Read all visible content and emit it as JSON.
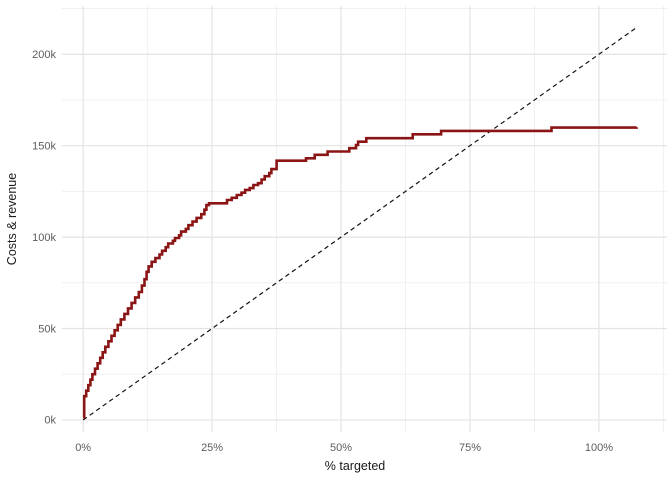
{
  "figure": {
    "x_axis": {
      "title": "% targeted",
      "tick_labels": [
        "0%",
        "25%",
        "50%",
        "75%",
        "100%"
      ],
      "tick_values": [
        0,
        25,
        50,
        75,
        100
      ],
      "minor_values": [
        12.5,
        37.5,
        62.5,
        87.5,
        112.5
      ]
    },
    "y_axis": {
      "title": "Costs & revenue",
      "tick_labels": [
        "0k",
        "50k",
        "100k",
        "150k",
        "200k"
      ],
      "tick_values": [
        0,
        50,
        100,
        150,
        200
      ],
      "minor_values": [
        25,
        75,
        125,
        175,
        225
      ]
    },
    "colors": {
      "curve": "#8B1414",
      "baseline": "#111111",
      "grid_major": "#E3E3E3",
      "grid_minor": "#F0F0F0",
      "tick_text": "#5C5C5C",
      "title_text": "#1A1A1A",
      "background": "#FFFFFF"
    }
  },
  "chart_data": {
    "type": "line",
    "title": "",
    "xlabel": "% targeted",
    "ylabel": "Costs & revenue",
    "x_unit": "percent",
    "y_unit": "thousands",
    "xlim": [
      -4.1,
      113.2
    ],
    "ylim": [
      -6.6,
      226.4
    ],
    "grid": true,
    "legend": false,
    "series": [
      {
        "name": "cumulative-costs-revenue-curve",
        "style": "step",
        "color": "#8B1414",
        "points": [
          [
            0,
            1.5
          ],
          [
            0.2,
            13
          ],
          [
            0.6,
            16
          ],
          [
            1.0,
            19
          ],
          [
            1.4,
            22
          ],
          [
            1.8,
            25
          ],
          [
            2.3,
            28
          ],
          [
            2.8,
            31
          ],
          [
            3.3,
            34
          ],
          [
            3.8,
            37
          ],
          [
            4.3,
            40
          ],
          [
            4.9,
            43
          ],
          [
            5.5,
            46
          ],
          [
            6.1,
            49
          ],
          [
            6.7,
            52
          ],
          [
            7.3,
            55
          ],
          [
            8.0,
            58
          ],
          [
            8.7,
            61
          ],
          [
            9.4,
            64
          ],
          [
            10.1,
            67
          ],
          [
            10.8,
            70
          ],
          [
            11.4,
            73.5
          ],
          [
            11.9,
            77
          ],
          [
            12.3,
            81
          ],
          [
            12.7,
            84
          ],
          [
            13.3,
            86.5
          ],
          [
            14.0,
            88.5
          ],
          [
            14.8,
            90.5
          ],
          [
            15.3,
            92.5
          ],
          [
            16.0,
            94.5
          ],
          [
            16.5,
            96.5
          ],
          [
            17.4,
            98
          ],
          [
            17.8,
            99.5
          ],
          [
            18.6,
            101
          ],
          [
            19.0,
            103
          ],
          [
            19.9,
            104.5
          ],
          [
            20.4,
            106.5
          ],
          [
            21.2,
            108.5
          ],
          [
            22.0,
            110.5
          ],
          [
            22.9,
            112.5
          ],
          [
            23.5,
            115
          ],
          [
            23.9,
            117.5
          ],
          [
            24.4,
            118.5
          ],
          [
            27.9,
            120.3
          ],
          [
            28.8,
            121.5
          ],
          [
            29.8,
            123
          ],
          [
            30.7,
            124.3
          ],
          [
            31.4,
            125.8
          ],
          [
            32.3,
            126.8
          ],
          [
            33.0,
            128.5
          ],
          [
            33.9,
            129.5
          ],
          [
            34.6,
            131.5
          ],
          [
            35.2,
            133.3
          ],
          [
            36.1,
            135
          ],
          [
            36.5,
            137.2
          ],
          [
            37.5,
            141.8
          ],
          [
            43.2,
            143.1
          ],
          [
            44.9,
            145
          ],
          [
            47.4,
            146.8
          ],
          [
            51.6,
            148.6
          ],
          [
            52.9,
            150.4
          ],
          [
            53.3,
            152.2
          ],
          [
            54.9,
            154.1
          ],
          [
            63.9,
            156.2
          ],
          [
            69.4,
            158.1
          ],
          [
            90.8,
            159.9
          ],
          [
            107.3,
            160.1
          ]
        ]
      },
      {
        "name": "baseline-costs-line",
        "style": "dashed",
        "color": "#111111",
        "points": [
          [
            0,
            0
          ],
          [
            107.3,
            214.6
          ]
        ]
      }
    ]
  }
}
